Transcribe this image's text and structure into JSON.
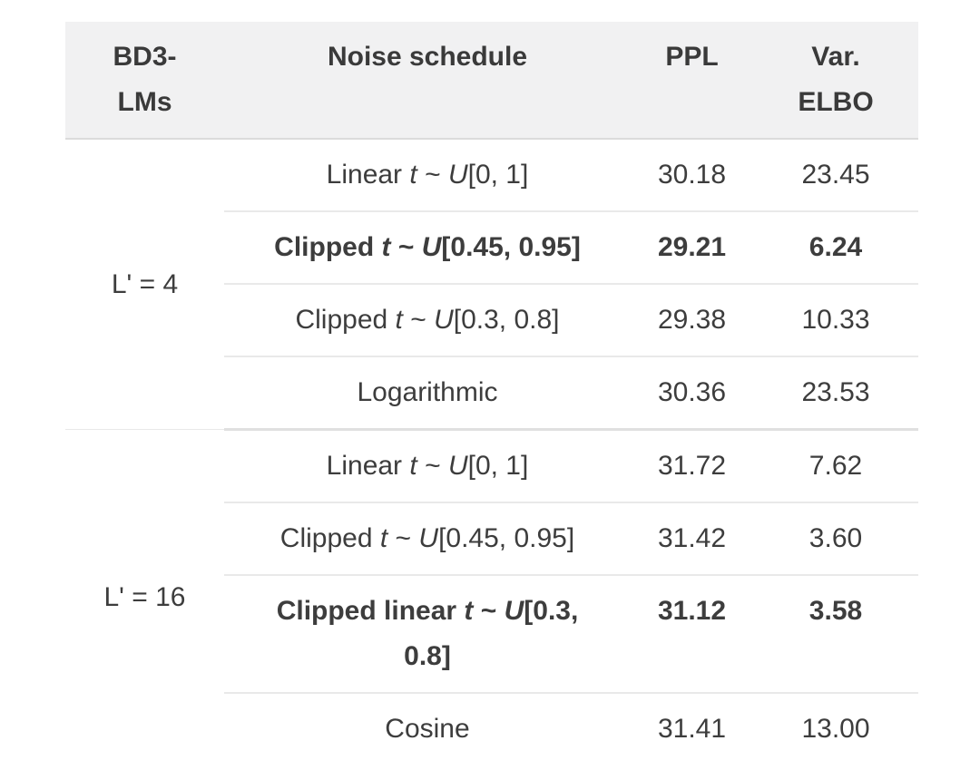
{
  "table": {
    "columns": [
      {
        "id": "bd3-lms",
        "label": "BD3-\nLMs"
      },
      {
        "id": "noise-schedule",
        "label": "Noise schedule"
      },
      {
        "id": "ppl",
        "label": "PPL"
      },
      {
        "id": "var-elbo",
        "label": "Var.\nELBO"
      }
    ],
    "groups": [
      {
        "label": "L' = 4",
        "rows": [
          {
            "schedule": [
              {
                "text": "Linear ",
                "italic": false
              },
              {
                "text": "t",
                "italic": true
              },
              {
                "text": " ~ ",
                "italic": false
              },
              {
                "text": "U",
                "italic": true
              },
              {
                "text": "[0, 1]",
                "italic": false
              }
            ],
            "ppl": "30.18",
            "var_elbo": "23.45",
            "bold": false
          },
          {
            "schedule": [
              {
                "text": "Clipped ",
                "italic": false
              },
              {
                "text": "t",
                "italic": true
              },
              {
                "text": " ~ ",
                "italic": false
              },
              {
                "text": "U",
                "italic": true
              },
              {
                "text": "[0.45, 0.95]",
                "italic": false
              }
            ],
            "ppl": "29.21",
            "var_elbo": "6.24",
            "bold": true
          },
          {
            "schedule": [
              {
                "text": "Clipped ",
                "italic": false
              },
              {
                "text": "t",
                "italic": true
              },
              {
                "text": " ~ ",
                "italic": false
              },
              {
                "text": "U",
                "italic": true
              },
              {
                "text": "[0.3, 0.8]",
                "italic": false
              }
            ],
            "ppl": "29.38",
            "var_elbo": "10.33",
            "bold": false
          },
          {
            "schedule": [
              {
                "text": "Logarithmic",
                "italic": false
              }
            ],
            "ppl": "30.36",
            "var_elbo": "23.53",
            "bold": false
          }
        ]
      },
      {
        "label": "L' = 16",
        "rows": [
          {
            "schedule": [
              {
                "text": "Linear ",
                "italic": false
              },
              {
                "text": "t",
                "italic": true
              },
              {
                "text": " ~ ",
                "italic": false
              },
              {
                "text": "U",
                "italic": true
              },
              {
                "text": "[0, 1]",
                "italic": false
              }
            ],
            "ppl": "31.72",
            "var_elbo": "7.62",
            "bold": false
          },
          {
            "schedule": [
              {
                "text": "Clipped ",
                "italic": false
              },
              {
                "text": "t",
                "italic": true
              },
              {
                "text": " ~ ",
                "italic": false
              },
              {
                "text": "U",
                "italic": true
              },
              {
                "text": "[0.45, 0.95]",
                "italic": false
              }
            ],
            "ppl": "31.42",
            "var_elbo": "3.60",
            "bold": false
          },
          {
            "schedule": [
              {
                "text": "Clipped linear ",
                "italic": false
              },
              {
                "text": "t",
                "italic": true
              },
              {
                "text": " ~ ",
                "italic": false
              },
              {
                "text": "U",
                "italic": true
              },
              {
                "text": "[0.3,\n0.8]",
                "italic": false
              }
            ],
            "ppl": "31.12",
            "var_elbo": "3.58",
            "bold": true
          },
          {
            "schedule": [
              {
                "text": "Cosine",
                "italic": false
              }
            ],
            "ppl": "31.41",
            "var_elbo": "13.00",
            "bold": false
          }
        ]
      }
    ]
  },
  "colors": {
    "header_background": "#f1f1f2",
    "header_border": "#dbdbdb",
    "row_border": "#e9e9e9",
    "group_border": "#e0e0e0",
    "text": "#3d3d3d"
  }
}
